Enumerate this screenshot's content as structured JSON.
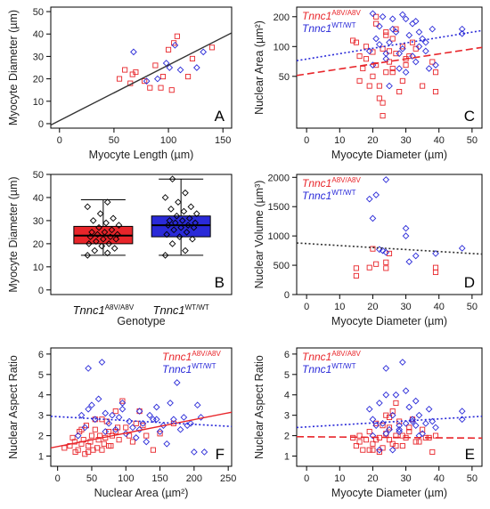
{
  "figure": {
    "background": "#ffffff"
  },
  "colors": {
    "mutant": "#e8252a",
    "wildtype": "#2a2ad8",
    "fit": "#333333",
    "box_outline": "#000000"
  },
  "genotype_labels": {
    "mutant": {
      "gene": "Tnnc1",
      "allele": "A8V/A8V"
    },
    "wildtype": {
      "gene": "Tnnc1",
      "allele": "WT/WT"
    }
  },
  "chart_data": [
    {
      "id": "A",
      "panel_label": "A",
      "type": "scatter",
      "xlabel": "Myocyte Length (µm)",
      "ylabel": "Myocyte Diameter (µm)",
      "xlim": [
        -8,
        158
      ],
      "ylim": [
        -2,
        52
      ],
      "xticks": [
        0,
        50,
        100,
        150
      ],
      "yticks": [
        0,
        10,
        20,
        30,
        40,
        50
      ],
      "legend": false,
      "series": [
        {
          "group": "mutant",
          "marker": "square",
          "x": [
            55,
            60,
            65,
            67,
            70,
            78,
            83,
            88,
            93,
            95,
            100,
            103,
            105,
            108,
            118,
            122,
            140
          ],
          "y": [
            20,
            24,
            18,
            22,
            23,
            19,
            16,
            26,
            16,
            21,
            33,
            15,
            36,
            39,
            21,
            29,
            34
          ]
        },
        {
          "group": "wildtype",
          "marker": "diamond",
          "x": [
            68,
            80,
            90,
            98,
            101,
            106,
            111,
            126,
            132
          ],
          "y": [
            32,
            19,
            20,
            27,
            25,
            35,
            24,
            25,
            32
          ]
        }
      ],
      "fits": [
        {
          "style": "solid",
          "color_key": "fit",
          "x": [
            -8,
            158
          ],
          "y": [
            -0.6,
            40.5
          ]
        }
      ]
    },
    {
      "id": "C",
      "panel_label": "C",
      "type": "scatter",
      "xlabel": "Myocyte Diameter (µm)",
      "ylabel": "Nuclear Area (µm²)",
      "xlim": [
        -3,
        53
      ],
      "ylim": [
        15,
        250
      ],
      "yscale": "log",
      "xticks": [
        0,
        10,
        20,
        30,
        40,
        50
      ],
      "yticks": [
        50,
        100,
        200
      ],
      "legend": true,
      "legend_position": "top-left",
      "series": [
        {
          "group": "mutant",
          "marker": "square",
          "x": [
            14,
            15,
            16,
            17,
            18,
            19,
            20,
            20,
            21,
            21,
            22,
            22,
            23,
            23,
            24,
            24,
            25,
            25,
            26,
            26,
            27,
            28,
            29,
            30,
            31,
            33,
            35,
            38,
            39,
            39,
            16,
            18,
            21,
            23,
            26,
            29,
            32,
            24,
            27,
            30
          ],
          "y": [
            115,
            110,
            45,
            60,
            75,
            40,
            88,
            50,
            170,
            200,
            40,
            30,
            95,
            27,
            130,
            55,
            70,
            90,
            60,
            120,
            150,
            35,
            100,
            65,
            80,
            95,
            40,
            70,
            55,
            35,
            80,
            100,
            65,
            20,
            55,
            45,
            110,
            140,
            85,
            75
          ]
        },
        {
          "group": "wildtype",
          "marker": "diamond",
          "x": [
            19,
            20,
            21,
            22,
            23,
            24,
            25,
            26,
            27,
            28,
            29,
            30,
            31,
            32,
            33,
            34,
            35,
            36,
            37,
            38,
            39,
            20,
            22,
            24,
            26,
            28,
            30,
            32,
            34,
            36,
            47,
            47,
            25,
            29,
            33
          ],
          "y": [
            90,
            215,
            120,
            160,
            200,
            75,
            110,
            190,
            140,
            85,
            95,
            55,
            130,
            170,
            70,
            100,
            120,
            90,
            60,
            150,
            65,
            65,
            105,
            85,
            150,
            60,
            190,
            80,
            140,
            110,
            150,
            135,
            40,
            210,
            180
          ]
        }
      ],
      "fits": [
        {
          "group": "mutant",
          "style": "dashed",
          "x": [
            -3,
            53
          ],
          "y": [
            51,
            98
          ]
        },
        {
          "group": "wildtype",
          "style": "dotted",
          "x": [
            -3,
            53
          ],
          "y": [
            72,
            145
          ]
        }
      ]
    },
    {
      "id": "B",
      "panel_label": "B",
      "type": "box",
      "xlabel": "Genotype",
      "ylabel": "Myocyte Diameter (µm)",
      "ylim": [
        -2,
        50
      ],
      "yticks": [
        0,
        10,
        20,
        30,
        40,
        50
      ],
      "categories": [
        "mutant",
        "wildtype"
      ],
      "boxes": [
        {
          "group": "mutant",
          "min": 15,
          "q1": 20,
          "median": 23.5,
          "q3": 27.5,
          "max": 39,
          "points": [
            15,
            16,
            17,
            18,
            19,
            20,
            20,
            21,
            22,
            22,
            23,
            23,
            24,
            24,
            25,
            25,
            26,
            27,
            28,
            29,
            30,
            31,
            33,
            36,
            38
          ]
        },
        {
          "group": "wildtype",
          "min": 15,
          "q1": 23,
          "median": 28,
          "q3": 32,
          "max": 48,
          "points": [
            15,
            17,
            20,
            22,
            23,
            24,
            25,
            26,
            27,
            27,
            28,
            28,
            29,
            29,
            30,
            30,
            31,
            32,
            33,
            34,
            35,
            36,
            38,
            40,
            42,
            48
          ]
        }
      ]
    },
    {
      "id": "D",
      "panel_label": "D",
      "type": "scatter",
      "xlabel": "Myocyte Diameter (µm)",
      "ylabel": "Nuclear Volume (µm³)",
      "xlim": [
        -3,
        53
      ],
      "ylim": [
        0,
        2050
      ],
      "xticks": [
        0,
        10,
        20,
        30,
        40,
        50
      ],
      "yticks": [
        0,
        500,
        1000,
        1500,
        2000
      ],
      "legend": true,
      "legend_position": "top-left",
      "series": [
        {
          "group": "mutant",
          "marker": "square",
          "x": [
            15,
            15,
            19,
            20,
            21,
            24,
            24,
            25,
            39,
            39
          ],
          "y": [
            320,
            450,
            460,
            780,
            520,
            550,
            450,
            700,
            460,
            380
          ]
        },
        {
          "group": "wildtype",
          "marker": "diamond",
          "x": [
            19,
            20,
            21,
            22,
            23,
            24,
            24,
            30,
            30,
            31,
            33,
            39,
            47
          ],
          "y": [
            1630,
            1300,
            1700,
            770,
            750,
            1960,
            720,
            1000,
            1130,
            560,
            660,
            700,
            790
          ]
        }
      ],
      "fits": [
        {
          "group": "all",
          "style": "dotted",
          "color_key": "fit",
          "x": [
            -3,
            53
          ],
          "y": [
            880,
            690
          ]
        }
      ]
    },
    {
      "id": "F",
      "panel_label": "F",
      "type": "scatter",
      "xlabel": "Nuclear Area (µm²)",
      "ylabel": "Nuclear Aspect Ratio",
      "xlim": [
        -10,
        255
      ],
      "ylim": [
        0.5,
        6.3
      ],
      "xticks": [
        0,
        50,
        100,
        150,
        200,
        250
      ],
      "yticks": [
        1,
        2,
        3,
        4,
        5,
        6
      ],
      "legend": true,
      "legend_position": "top-right",
      "series": [
        {
          "group": "mutant",
          "marker": "square",
          "x": [
            10,
            18,
            22,
            26,
            30,
            32,
            35,
            38,
            40,
            42,
            45,
            48,
            50,
            52,
            55,
            58,
            60,
            62,
            65,
            68,
            70,
            72,
            75,
            78,
            80,
            85,
            88,
            90,
            95,
            100,
            105,
            110,
            115,
            120,
            125,
            130,
            140,
            150,
            170,
            25,
            35,
            45,
            55,
            65,
            75,
            85
          ],
          "y": [
            1.4,
            1.5,
            1.9,
            1.2,
            1.3,
            2.2,
            1.6,
            1.8,
            1.1,
            2.5,
            1.5,
            1.7,
            2.0,
            1.3,
            2.3,
            1.4,
            1.8,
            2.0,
            2.8,
            1.6,
            1.9,
            2.7,
            2.2,
            1.5,
            2.0,
            3.2,
            2.4,
            1.8,
            3.7,
            2.4,
            2.0,
            1.7,
            2.6,
            3.2,
            2.5,
            2.0,
            1.3,
            2.1,
            2.6,
            1.7,
            2.3,
            1.2,
            2.8,
            1.3,
            1.5,
            2.2
          ]
        },
        {
          "group": "wildtype",
          "marker": "diamond",
          "x": [
            30,
            35,
            40,
            45,
            50,
            55,
            60,
            65,
            70,
            75,
            80,
            85,
            90,
            95,
            100,
            105,
            110,
            115,
            120,
            125,
            130,
            135,
            140,
            145,
            150,
            155,
            160,
            165,
            170,
            175,
            180,
            185,
            190,
            195,
            200,
            205,
            210,
            215,
            45,
            70,
            95,
            120,
            145
          ],
          "y": [
            2.0,
            3.0,
            2.4,
            5.3,
            3.5,
            2.8,
            3.8,
            5.6,
            2.2,
            2.6,
            3.0,
            2.3,
            2.9,
            3.6,
            2.1,
            2.7,
            2.4,
            1.9,
            3.2,
            2.6,
            1.7,
            3.0,
            2.8,
            3.4,
            2.2,
            2.5,
            1.6,
            3.6,
            2.8,
            4.6,
            2.3,
            2.9,
            2.5,
            2.6,
            1.2,
            3.5,
            2.9,
            1.2,
            3.3,
            3.1,
            3.3,
            2.3,
            2.8
          ]
        }
      ],
      "fits": [
        {
          "group": "mutant",
          "style": "solid",
          "x": [
            -10,
            255
          ],
          "y": [
            1.4,
            3.15
          ]
        },
        {
          "group": "wildtype",
          "style": "dotted",
          "x": [
            -10,
            255
          ],
          "y": [
            2.95,
            2.45
          ]
        }
      ]
    },
    {
      "id": "E",
      "panel_label": "E",
      "type": "scatter",
      "xlabel": "Myocyte Diameter (µm)",
      "ylabel": "Nuclear Aspect Ratio",
      "xlim": [
        -3,
        53
      ],
      "ylim": [
        0.5,
        6.3
      ],
      "xticks": [
        0,
        10,
        20,
        30,
        40,
        50
      ],
      "yticks": [
        1,
        2,
        3,
        4,
        5,
        6
      ],
      "legend": true,
      "legend_position": "top-left",
      "series": [
        {
          "group": "mutant",
          "marker": "square",
          "x": [
            14,
            15,
            16,
            17,
            18,
            19,
            20,
            20,
            21,
            22,
            22,
            23,
            24,
            24,
            25,
            25,
            26,
            26,
            27,
            27,
            28,
            29,
            30,
            31,
            32,
            33,
            35,
            37,
            38,
            39,
            16,
            19,
            21,
            23,
            25,
            27,
            29,
            31,
            34,
            36
          ],
          "y": [
            1.9,
            1.5,
            2.0,
            1.3,
            1.8,
            2.2,
            1.6,
            1.3,
            2.6,
            1.9,
            1.2,
            1.4,
            2.1,
            3.0,
            1.8,
            2.4,
            1.6,
            3.2,
            3.6,
            2.0,
            2.7,
            1.5,
            1.9,
            2.2,
            2.8,
            1.7,
            2.3,
            1.9,
            1.2,
            2.0,
            1.7,
            1.3,
            1.8,
            2.5,
            2.9,
            1.5,
            2.0,
            2.4,
            1.7,
            1.9
          ]
        },
        {
          "group": "wildtype",
          "marker": "diamond",
          "x": [
            19,
            20,
            21,
            22,
            23,
            24,
            25,
            26,
            27,
            28,
            29,
            30,
            31,
            32,
            33,
            34,
            35,
            36,
            37,
            38,
            39,
            20,
            22,
            24,
            26,
            28,
            30,
            32,
            34,
            47,
            47,
            24,
            28,
            33
          ],
          "y": [
            3.3,
            2.8,
            2.5,
            3.6,
            2.6,
            5.3,
            2.3,
            3.0,
            4.0,
            2.2,
            5.6,
            2.6,
            3.4,
            2.8,
            2.5,
            3.0,
            2.1,
            2.6,
            3.3,
            2.7,
            2.4,
            2.0,
            1.3,
            2.1,
            1.3,
            2.3,
            4.2,
            2.7,
            2.0,
            3.2,
            2.8,
            4.0,
            2.5,
            3.7
          ]
        }
      ],
      "fits": [
        {
          "group": "mutant",
          "style": "dashed",
          "x": [
            -3,
            53
          ],
          "y": [
            1.95,
            1.88
          ]
        },
        {
          "group": "wildtype",
          "style": "dotted",
          "x": [
            -3,
            53
          ],
          "y": [
            2.4,
            2.95
          ]
        }
      ]
    }
  ]
}
